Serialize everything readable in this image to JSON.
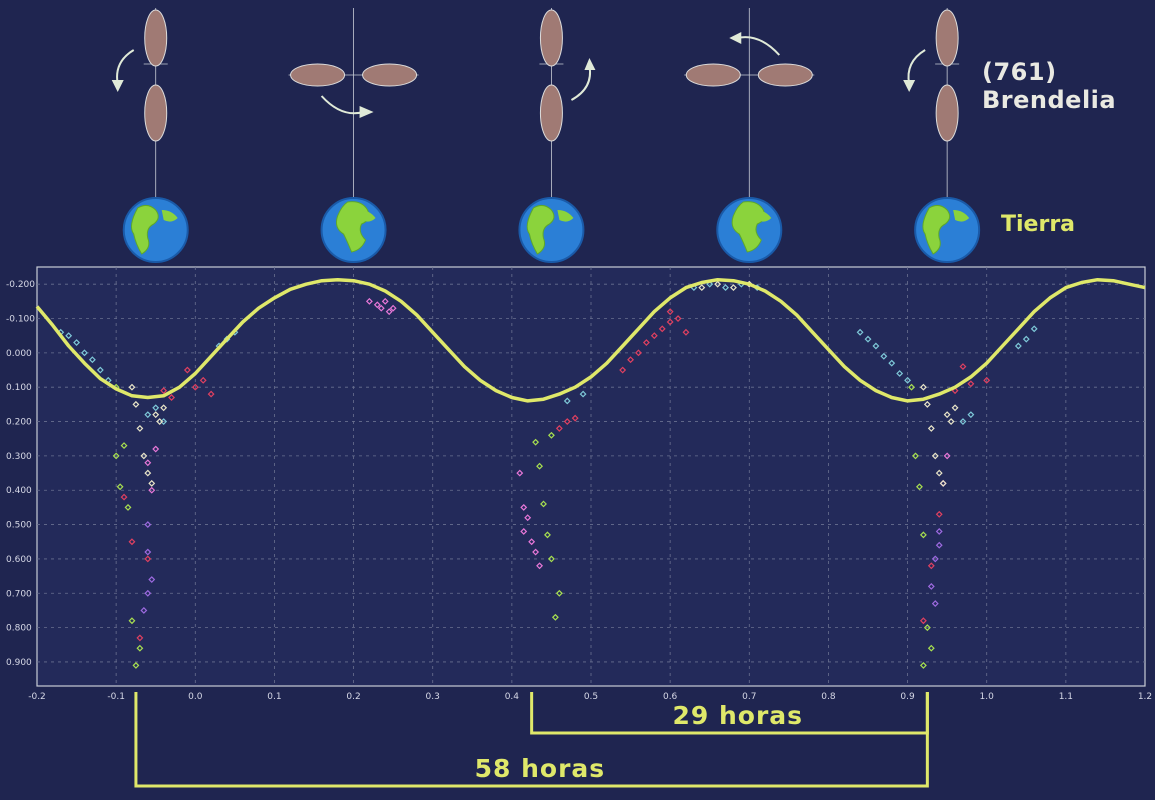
{
  "header": {
    "asteroid_name": "(761) Brendelia",
    "earth_label": "Tierra"
  },
  "colors": {
    "background": "#1f2550",
    "plot_background": "#232a5a",
    "curve": "#dfe86a",
    "bracket": "#dfe86a",
    "asteroid_fill": "#a07a74",
    "grid": "#6a7090"
  },
  "orientation_sequence": [
    {
      "phase": -0.05,
      "orientation": "vertical",
      "rotation_arrow": "left-down",
      "earth_icon": "earth-americas-icon"
    },
    {
      "phase": 0.2,
      "orientation": "horizontal",
      "rotation_arrow": "bottom-right",
      "earth_icon": "earth-africa-icon"
    },
    {
      "phase": 0.45,
      "orientation": "vertical",
      "rotation_arrow": "right-up",
      "earth_icon": "earth-asia-icon"
    },
    {
      "phase": 0.7,
      "orientation": "horizontal",
      "rotation_arrow": "top-right",
      "earth_icon": "earth-asia-icon"
    },
    {
      "phase": 0.95,
      "orientation": "vertical",
      "rotation_arrow": "left-down",
      "earth_icon": "earth-africa-icon"
    }
  ],
  "chart_data": {
    "type": "scatter",
    "title": "",
    "xlabel": "",
    "ylabel": "",
    "xlim": [
      -0.2,
      1.2
    ],
    "ylim": [
      -0.25,
      0.97
    ],
    "y_inverted": true,
    "grid": true,
    "x_ticks": [
      "-0.2",
      "-0.1",
      "0.0",
      "0.1",
      "0.2",
      "0.3",
      "0.4",
      "0.5",
      "0.6",
      "0.7",
      "0.8",
      "0.9",
      "1.0",
      "1.1",
      "1.2"
    ],
    "y_ticks": [
      "-0.200",
      "-0.100",
      "0.000",
      "0.100",
      "0.200",
      "0.300",
      "0.400",
      "0.500",
      "0.600",
      "0.700",
      "0.800",
      "0.900"
    ],
    "model_curve": {
      "name": "",
      "x": [
        -0.2,
        -0.18,
        -0.16,
        -0.14,
        -0.12,
        -0.1,
        -0.08,
        -0.06,
        -0.04,
        -0.02,
        0.0,
        0.02,
        0.04,
        0.06,
        0.08,
        0.1,
        0.12,
        0.14,
        0.16,
        0.18,
        0.2,
        0.22,
        0.24,
        0.26,
        0.28,
        0.3,
        0.32,
        0.34,
        0.36,
        0.38,
        0.4,
        0.42,
        0.44,
        0.46,
        0.48,
        0.5,
        0.52,
        0.54,
        0.56,
        0.58,
        0.6,
        0.62,
        0.64,
        0.66,
        0.68,
        0.7,
        0.72,
        0.74,
        0.76,
        0.78,
        0.8,
        0.82,
        0.84,
        0.86,
        0.88,
        0.9,
        0.92,
        0.94,
        0.96,
        0.98,
        1.0,
        1.02,
        1.04,
        1.06,
        1.08,
        1.1,
        1.12,
        1.14,
        1.16,
        1.18,
        1.2
      ],
      "y": [
        -0.135,
        -0.08,
        -0.02,
        0.03,
        0.075,
        0.105,
        0.125,
        0.13,
        0.125,
        0.1,
        0.06,
        0.01,
        -0.04,
        -0.09,
        -0.13,
        -0.16,
        -0.185,
        -0.2,
        -0.21,
        -0.213,
        -0.21,
        -0.2,
        -0.18,
        -0.15,
        -0.11,
        -0.06,
        -0.01,
        0.04,
        0.08,
        0.11,
        0.13,
        0.14,
        0.135,
        0.12,
        0.1,
        0.07,
        0.03,
        -0.02,
        -0.07,
        -0.12,
        -0.16,
        -0.19,
        -0.205,
        -0.213,
        -0.21,
        -0.2,
        -0.18,
        -0.15,
        -0.11,
        -0.06,
        -0.01,
        0.04,
        0.08,
        0.11,
        0.13,
        0.14,
        0.135,
        0.12,
        0.1,
        0.07,
        0.03,
        -0.02,
        -0.07,
        -0.12,
        -0.16,
        -0.19,
        -0.205,
        -0.213,
        -0.21,
        -0.2,
        -0.19
      ]
    },
    "observations": [
      {
        "name": "",
        "color": "#7ec8d8",
        "points": [
          [
            -0.17,
            -0.06
          ],
          [
            -0.16,
            -0.05
          ],
          [
            -0.15,
            -0.03
          ],
          [
            -0.14,
            0.0
          ],
          [
            -0.13,
            0.02
          ],
          [
            -0.12,
            0.05
          ],
          [
            -0.11,
            0.08
          ],
          [
            -0.06,
            0.18
          ],
          [
            -0.05,
            0.16
          ],
          [
            -0.04,
            0.2
          ],
          [
            0.03,
            -0.02
          ],
          [
            0.04,
            -0.04
          ],
          [
            0.05,
            -0.06
          ],
          [
            0.84,
            -0.06
          ],
          [
            0.85,
            -0.04
          ],
          [
            0.86,
            -0.02
          ],
          [
            0.87,
            0.01
          ],
          [
            0.88,
            0.03
          ],
          [
            0.89,
            0.06
          ],
          [
            0.9,
            0.08
          ],
          [
            0.97,
            0.2
          ],
          [
            0.98,
            0.18
          ],
          [
            1.04,
            -0.02
          ],
          [
            1.05,
            -0.04
          ],
          [
            1.06,
            -0.07
          ],
          [
            0.63,
            -0.19
          ],
          [
            0.65,
            -0.2
          ],
          [
            0.67,
            -0.19
          ],
          [
            0.69,
            -0.2
          ],
          [
            0.71,
            -0.19
          ],
          [
            0.47,
            0.14
          ],
          [
            0.49,
            0.12
          ]
        ]
      },
      {
        "name": "",
        "color": "#e04060",
        "points": [
          [
            -0.04,
            0.11
          ],
          [
            -0.03,
            0.13
          ],
          [
            -0.01,
            0.05
          ],
          [
            0.0,
            0.1
          ],
          [
            0.01,
            0.08
          ],
          [
            0.02,
            0.12
          ],
          [
            -0.08,
            0.55
          ],
          [
            -0.09,
            0.42
          ],
          [
            -0.07,
            0.83
          ],
          [
            -0.06,
            0.6
          ],
          [
            0.54,
            0.05
          ],
          [
            0.55,
            0.02
          ],
          [
            0.56,
            0.0
          ],
          [
            0.57,
            -0.03
          ],
          [
            0.58,
            -0.05
          ],
          [
            0.59,
            -0.07
          ],
          [
            0.6,
            -0.09
          ],
          [
            0.6,
            -0.12
          ],
          [
            0.61,
            -0.1
          ],
          [
            0.62,
            -0.06
          ],
          [
            0.46,
            0.22
          ],
          [
            0.47,
            0.2
          ],
          [
            0.48,
            0.19
          ],
          [
            0.92,
            0.78
          ],
          [
            0.93,
            0.62
          ],
          [
            0.94,
            0.47
          ],
          [
            0.96,
            0.11
          ],
          [
            0.98,
            0.09
          ],
          [
            1.0,
            0.08
          ],
          [
            0.97,
            0.04
          ]
        ]
      },
      {
        "name": "",
        "color": "#e878d8",
        "points": [
          [
            0.22,
            -0.15
          ],
          [
            0.23,
            -0.14
          ],
          [
            0.235,
            -0.13
          ],
          [
            0.24,
            -0.15
          ],
          [
            0.245,
            -0.12
          ],
          [
            0.25,
            -0.13
          ],
          [
            0.41,
            0.35
          ],
          [
            0.415,
            0.45
          ],
          [
            0.42,
            0.48
          ],
          [
            0.425,
            0.55
          ],
          [
            0.43,
            0.58
          ],
          [
            0.435,
            0.62
          ],
          [
            0.415,
            0.52
          ],
          [
            -0.06,
            0.32
          ],
          [
            -0.05,
            0.28
          ],
          [
            -0.055,
            0.4
          ],
          [
            0.95,
            0.3
          ],
          [
            0.945,
            0.38
          ]
        ]
      },
      {
        "name": "",
        "color": "#9d6ae0",
        "points": [
          [
            -0.06,
            0.5
          ],
          [
            -0.06,
            0.58
          ],
          [
            -0.055,
            0.66
          ],
          [
            -0.065,
            0.75
          ],
          [
            -0.06,
            0.7
          ],
          [
            0.94,
            0.52
          ],
          [
            0.935,
            0.6
          ],
          [
            0.93,
            0.68
          ],
          [
            0.935,
            0.73
          ],
          [
            0.94,
            0.56
          ]
        ]
      },
      {
        "name": "",
        "color": "#a8e050",
        "points": [
          [
            -0.1,
            0.1
          ],
          [
            -0.1,
            0.3
          ],
          [
            -0.095,
            0.39
          ],
          [
            -0.09,
            0.27
          ],
          [
            -0.085,
            0.45
          ],
          [
            -0.08,
            0.78
          ],
          [
            -0.075,
            0.91
          ],
          [
            -0.07,
            0.86
          ],
          [
            0.43,
            0.26
          ],
          [
            0.435,
            0.33
          ],
          [
            0.44,
            0.44
          ],
          [
            0.445,
            0.53
          ],
          [
            0.45,
            0.6
          ],
          [
            0.455,
            0.77
          ],
          [
            0.46,
            0.7
          ],
          [
            0.45,
            0.24
          ],
          [
            0.905,
            0.1
          ],
          [
            0.91,
            0.3
          ],
          [
            0.915,
            0.39
          ],
          [
            0.92,
            0.53
          ],
          [
            0.925,
            0.8
          ],
          [
            0.92,
            0.91
          ],
          [
            0.93,
            0.86
          ]
        ]
      },
      {
        "name": "",
        "color": "#e8e4c8",
        "points": [
          [
            -0.08,
            0.1
          ],
          [
            -0.075,
            0.15
          ],
          [
            -0.07,
            0.22
          ],
          [
            -0.065,
            0.3
          ],
          [
            -0.06,
            0.35
          ],
          [
            -0.055,
            0.38
          ],
          [
            -0.05,
            0.18
          ],
          [
            -0.045,
            0.2
          ],
          [
            -0.04,
            0.16
          ],
          [
            0.92,
            0.1
          ],
          [
            0.925,
            0.15
          ],
          [
            0.93,
            0.22
          ],
          [
            0.935,
            0.3
          ],
          [
            0.94,
            0.35
          ],
          [
            0.945,
            0.38
          ],
          [
            0.95,
            0.18
          ],
          [
            0.955,
            0.2
          ],
          [
            0.96,
            0.16
          ],
          [
            0.64,
            -0.19
          ],
          [
            0.66,
            -0.2
          ],
          [
            0.68,
            -0.19
          ],
          [
            0.7,
            -0.2
          ]
        ]
      }
    ],
    "period_annotations": [
      {
        "label": "29 horas",
        "x_start": 0.425,
        "x_end": 0.925
      },
      {
        "label": "58 horas",
        "x_start": -0.075,
        "x_end": 0.925
      }
    ]
  }
}
